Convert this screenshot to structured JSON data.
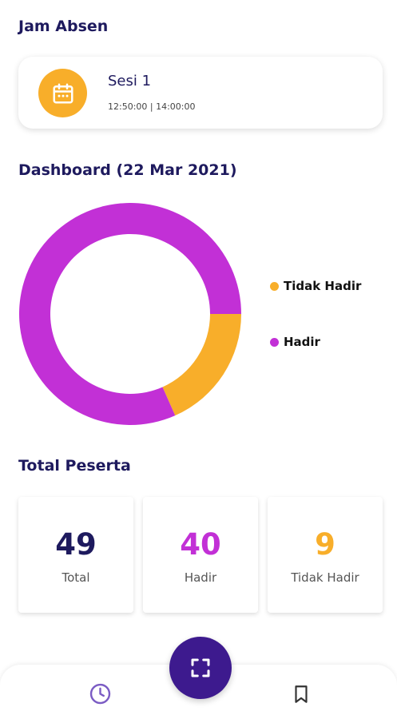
{
  "attendance": {
    "title": "Jam Absen",
    "session": {
      "name": "Sesi 1",
      "time": "12:50:00 | 14:00:00",
      "icon": "calendar-icon"
    }
  },
  "dashboard": {
    "title": "Dashboard (22 Mar 2021)",
    "legend": [
      {
        "label": "Tidak Hadir",
        "color": "#f8ae2a"
      },
      {
        "label": "Hadir",
        "color": "#c230d6"
      }
    ]
  },
  "chart_data": {
    "type": "pie",
    "categories": [
      "Tidak Hadir",
      "Hadir"
    ],
    "values": [
      9,
      40
    ],
    "colors": [
      "#f8ae2a",
      "#c230d6"
    ],
    "donut": true,
    "legend_position": "right"
  },
  "participants": {
    "title": "Total Peserta",
    "stats": [
      {
        "value": "49",
        "label": "Total",
        "color": "#1e1a5e"
      },
      {
        "value": "40",
        "label": "Hadir",
        "color": "#c230d6"
      },
      {
        "value": "9",
        "label": "Tidak Hadir",
        "color": "#f8ae2a"
      }
    ]
  },
  "nav": {
    "items": [
      {
        "icon": "clock-icon",
        "active": true
      },
      {
        "icon": "scan-icon"
      },
      {
        "icon": "bookmark-icon"
      }
    ],
    "active_color": "#7b5cc4",
    "fab_color": "#3d1a8e"
  }
}
